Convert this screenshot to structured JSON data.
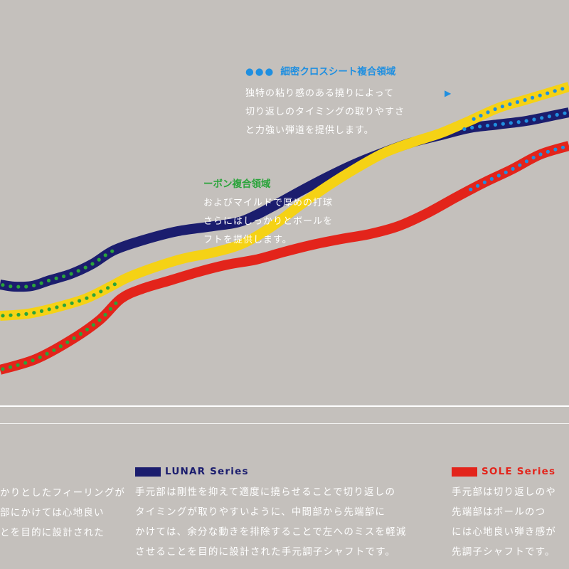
{
  "chart_data": {
    "type": "line",
    "title": "",
    "xlabel": "",
    "ylabel": "",
    "series": [
      {
        "name": "LUNAR Series",
        "color": "#1b1d6e",
        "points": [
          [
            0,
            400
          ],
          [
            20,
            403
          ],
          [
            45,
            402
          ],
          [
            70,
            394
          ],
          [
            100,
            385
          ],
          [
            130,
            371
          ],
          [
            160,
            352
          ],
          [
            200,
            338
          ],
          [
            250,
            325
          ],
          [
            300,
            318
          ],
          [
            340,
            311
          ],
          [
            380,
            292
          ],
          [
            420,
            270
          ],
          [
            460,
            249
          ],
          [
            500,
            230
          ],
          [
            540,
            214
          ],
          [
            580,
            200
          ],
          [
            620,
            190
          ],
          [
            660,
            180
          ],
          [
            700,
            175
          ],
          [
            740,
            170
          ],
          [
            780,
            162
          ],
          [
            800,
            158
          ]
        ]
      },
      {
        "name": "",
        "color": "#f5d215",
        "points": [
          [
            0,
            444
          ],
          [
            40,
            441
          ],
          [
            80,
            432
          ],
          [
            120,
            420
          ],
          [
            155,
            403
          ],
          [
            180,
            390
          ],
          [
            220,
            375
          ],
          [
            260,
            363
          ],
          [
            300,
            355
          ],
          [
            340,
            343
          ],
          [
            380,
            320
          ],
          [
            420,
            290
          ],
          [
            460,
            262
          ],
          [
            500,
            237
          ],
          [
            540,
            215
          ],
          [
            580,
            200
          ],
          [
            620,
            187
          ],
          [
            660,
            170
          ],
          [
            700,
            152
          ],
          [
            740,
            140
          ],
          [
            780,
            128
          ],
          [
            800,
            122
          ]
        ]
      },
      {
        "name": "SOLE Series",
        "color": "#e3241b",
        "points": [
          [
            0,
            520
          ],
          [
            50,
            505
          ],
          [
            100,
            478
          ],
          [
            140,
            450
          ],
          [
            170,
            420
          ],
          [
            200,
            406
          ],
          [
            240,
            394
          ],
          [
            280,
            382
          ],
          [
            320,
            372
          ],
          [
            360,
            365
          ],
          [
            400,
            354
          ],
          [
            440,
            344
          ],
          [
            480,
            336
          ],
          [
            520,
            329
          ],
          [
            560,
            318
          ],
          [
            600,
            300
          ],
          [
            640,
            278
          ],
          [
            680,
            257
          ],
          [
            720,
            238
          ],
          [
            760,
            217
          ],
          [
            800,
            205
          ]
        ]
      }
    ],
    "dotted_overlays": [
      {
        "series": 0,
        "color": "#2aa43a",
        "x_range": [
          0,
          160
        ]
      },
      {
        "series": 1,
        "color": "#2aa43a",
        "x_range": [
          0,
          170
        ]
      },
      {
        "series": 2,
        "color": "#2aa43a",
        "x_range": [
          0,
          168
        ]
      },
      {
        "series": 0,
        "color": "#1f8fe0",
        "x_range": [
          650,
          800
        ]
      },
      {
        "series": 1,
        "color": "#1f8fe0",
        "x_range": [
          662,
          800
        ]
      },
      {
        "series": 2,
        "color": "#1f8fe0",
        "x_range": [
          660,
          800
        ]
      }
    ],
    "annotations": [
      {
        "color": "#1f8fe0",
        "title": "細密クロスシート複合領域",
        "lines": [
          "独特の粘り感のある撓りによって",
          "切り返しのタイミングの取りやすさ",
          "と力強い弾道を提供します。"
        ]
      },
      {
        "color": "#2aa43a",
        "title": "ーボン複合領域",
        "lines": [
          "およびマイルドで厚めの打球",
          "さらにはしっかりとボールを",
          "フトを提供します。"
        ]
      }
    ]
  },
  "legend": {
    "left": {
      "lines": [
        "かりとしたフィーリングが",
        "部にかけては心地良い",
        "とを目的に設計された"
      ]
    },
    "lunar": {
      "label": "LUNAR Series",
      "color": "#1b1d6e",
      "lines": [
        "手元部は剛性を抑えて適度に撓らせることで切り返しの",
        "タイミングが取りやすいように、中間部から先端部に",
        "かけては、余分な動きを排除することで左へのミスを軽減",
        "させることを目的に設計された手元調子シャフトです。"
      ]
    },
    "sole": {
      "label": "SOLE Series",
      "color": "#e3241b",
      "lines": [
        "手元部は切り返しのや",
        "先端部はボールのつ",
        "には心地良い弾き感が",
        "先調子シャフトです。"
      ]
    }
  },
  "icons": {
    "dots": "●●●",
    "arrow": "▶"
  }
}
